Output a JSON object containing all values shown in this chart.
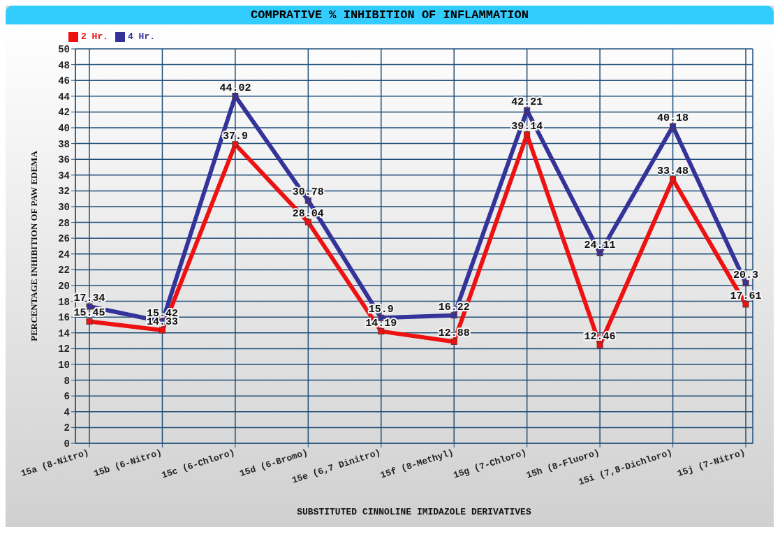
{
  "chart_data": {
    "type": "line",
    "title": "COMPRATIVE % INHIBITION OF INFLAMMATION",
    "xlabel": "SUBSTITUTED CINNOLINE IMIDAZOLE DERIVATIVES",
    "ylabel": "PERCENTAGE INHIBITION OF PAW EDEMA",
    "categories": [
      "15a (8-Nitro)",
      "15b (6-Nitro)",
      "15c (6-Chloro)",
      "15d (6-Bromo)",
      "15e (6,7 Dinitro)",
      "15f (8-Methyl)",
      "15g (7-Chloro)",
      "15h (8-Fluoro)",
      "15i (7,8-Dichloro)",
      "15j (7-Nitro)"
    ],
    "series": [
      {
        "name": "2 Hr.",
        "color": "#ee1111",
        "values": [
          15.45,
          14.33,
          37.9,
          28.04,
          14.19,
          12.88,
          39.14,
          12.46,
          33.48,
          17.61
        ]
      },
      {
        "name": "4 Hr.",
        "color": "#333399",
        "values": [
          17.34,
          15.42,
          44.02,
          30.78,
          15.9,
          16.22,
          42.21,
          24.11,
          40.18,
          20.3
        ]
      }
    ],
    "ylim": [
      0,
      50
    ],
    "yticks": [
      0,
      2,
      4,
      6,
      8,
      10,
      12,
      14,
      16,
      18,
      20,
      22,
      24,
      26,
      28,
      30,
      32,
      34,
      36,
      38,
      40,
      42,
      44,
      46,
      48,
      50
    ],
    "grid": true,
    "legend": "top left",
    "marker": "square",
    "line_style": "solid",
    "data_labels": true
  }
}
